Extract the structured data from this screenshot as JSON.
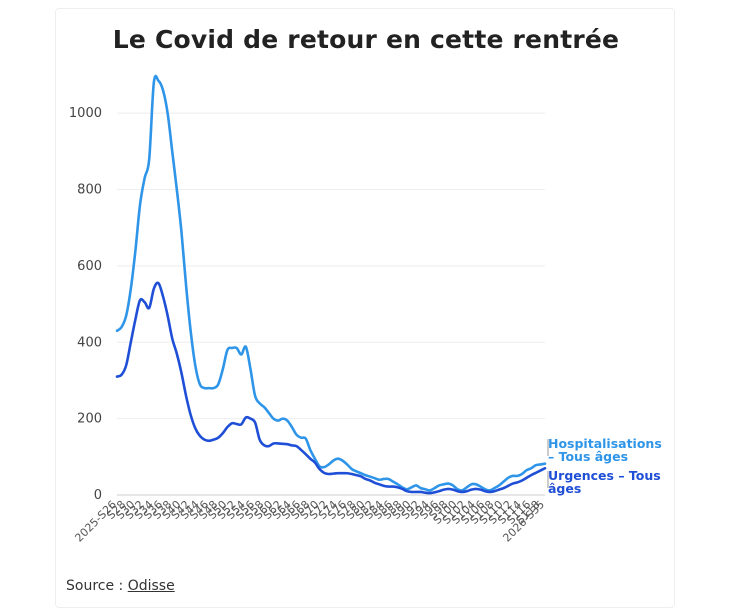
{
  "chart_data": {
    "type": "line",
    "title": "Le Covid de retour en cette rentrée",
    "xlabel": "",
    "ylabel": "",
    "ylim": [
      0,
      1100
    ],
    "yticks": [
      0,
      200,
      400,
      600,
      800,
      1000
    ],
    "grid": true,
    "x": [
      "2025-S26",
      "S27",
      "S28",
      "S29",
      "S30",
      "S31",
      "S32",
      "S33",
      "S34",
      "S35",
      "S36",
      "S37",
      "S38",
      "S39",
      "S40",
      "S41",
      "S42",
      "S43",
      "S44",
      "S45",
      "S46",
      "S47",
      "S48",
      "S49",
      "S50",
      "S51",
      "S52",
      "S53",
      "S54",
      "S55",
      "S56",
      "S57",
      "S58",
      "S59",
      "S60",
      "S61",
      "S62",
      "S63",
      "S64",
      "S65",
      "S66",
      "S67",
      "S68",
      "S69",
      "S70",
      "S71",
      "S72",
      "S73",
      "S74",
      "S75",
      "S76",
      "S77",
      "S78",
      "S79",
      "S80",
      "S81",
      "S82",
      "S83",
      "S84",
      "S85",
      "S86",
      "S87",
      "S88",
      "S89",
      "S90",
      "S91",
      "S92",
      "S93",
      "S94",
      "S95",
      "S96",
      "S97",
      "S98",
      "S99",
      "S100",
      "S101",
      "S102",
      "S103",
      "S104",
      "S105",
      "S106",
      "S107",
      "S108",
      "S109",
      "S110",
      "S111",
      "S112",
      "S113",
      "S114",
      "S115",
      "S116",
      "S117",
      "S118",
      "2026-S35"
    ],
    "series": [
      {
        "name": "Hospitalisations – Tous âges",
        "color": "#2f95e8",
        "values": [
          430,
          440,
          470,
          540,
          640,
          760,
          830,
          880,
          1080,
          1085,
          1060,
          1000,
          900,
          800,
          690,
          550,
          430,
          340,
          290,
          280,
          280,
          280,
          290,
          330,
          380,
          385,
          385,
          368,
          388,
          330,
          260,
          240,
          230,
          215,
          200,
          195,
          200,
          195,
          178,
          158,
          150,
          148,
          118,
          95,
          75,
          73,
          80,
          90,
          95,
          90,
          80,
          68,
          62,
          57,
          52,
          48,
          44,
          40,
          42,
          42,
          35,
          28,
          20,
          15,
          20,
          25,
          18,
          15,
          12,
          18,
          25,
          28,
          30,
          25,
          15,
          12,
          20,
          28,
          28,
          22,
          15,
          12,
          18,
          25,
          35,
          45,
          50,
          50,
          55,
          65,
          70,
          78,
          80,
          82
        ]
      },
      {
        "name": "Urgences – Tous âges",
        "color": "#1f4fd6",
        "values": [
          310,
          315,
          340,
          400,
          460,
          510,
          505,
          490,
          540,
          555,
          520,
          470,
          410,
          370,
          320,
          260,
          210,
          175,
          155,
          145,
          142,
          145,
          150,
          162,
          178,
          188,
          186,
          185,
          203,
          200,
          190,
          145,
          130,
          128,
          135,
          135,
          134,
          133,
          130,
          128,
          118,
          107,
          95,
          85,
          68,
          58,
          55,
          56,
          57,
          57,
          57,
          55,
          52,
          49,
          42,
          38,
          32,
          28,
          24,
          22,
          22,
          20,
          16,
          10,
          8,
          8,
          8,
          6,
          5,
          7,
          10,
          14,
          16,
          14,
          10,
          8,
          10,
          14,
          16,
          14,
          10,
          8,
          10,
          14,
          18,
          24,
          30,
          33,
          38,
          45,
          52,
          58,
          64,
          70
        ]
      }
    ]
  },
  "source": {
    "prefix": "Source : ",
    "link": "Odisse"
  }
}
